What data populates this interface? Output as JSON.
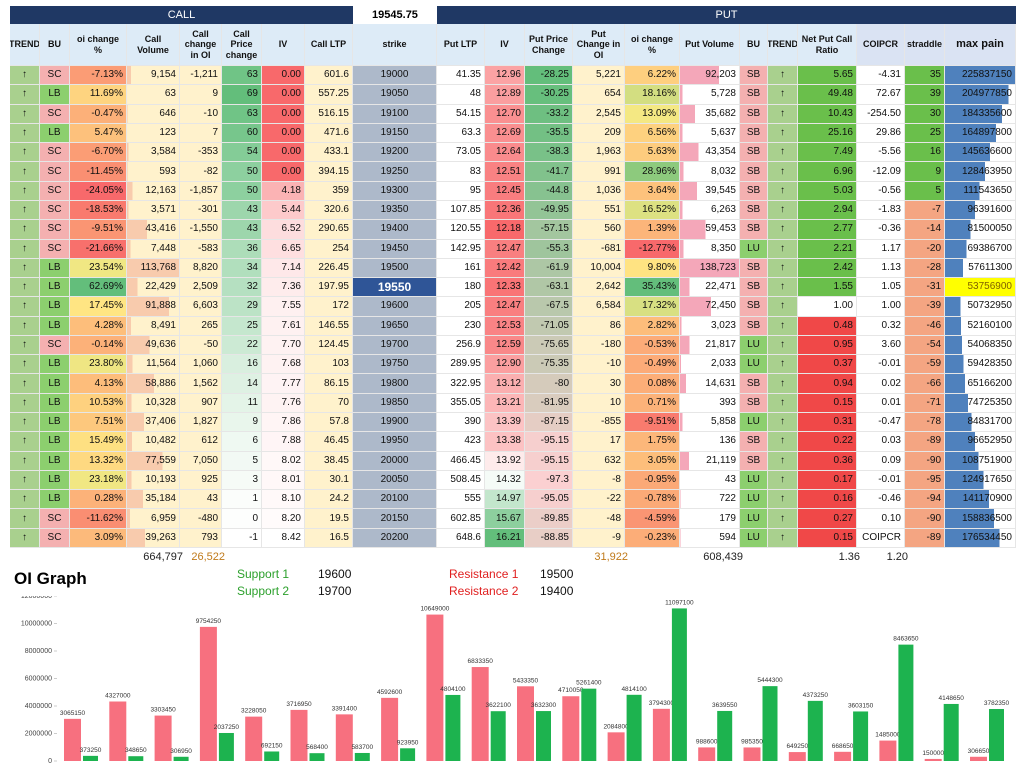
{
  "header": {
    "call": "CALL",
    "spot": "19545.75",
    "put": "PUT"
  },
  "table": {
    "columns": [
      "TREND",
      "BU",
      "oi change %",
      "Call Volume",
      "Call change in OI",
      "Call Price change",
      "IV",
      "Call LTP",
      "strike",
      "Put LTP",
      "IV",
      "Put Price Change",
      "Put Change in OI",
      "oi change %",
      "Put Volume",
      "BU",
      "TREND",
      "Net Put Call Ratio",
      "COIPCR",
      "straddle",
      "max pain"
    ],
    "rows": [
      [
        "↑",
        "SC",
        "-7.13%",
        "9,154",
        "-1,211",
        "63",
        "0.00",
        "601.6",
        "19000",
        "41.35",
        "12.96",
        "-28.25",
        "5,221",
        "6.22%",
        "92,203",
        "SB",
        "↑",
        "5.65",
        "-4.31",
        "35",
        "225837150"
      ],
      [
        "↑",
        "LB",
        "11.69%",
        "63",
        "9",
        "69",
        "0.00",
        "557.25",
        "19050",
        "48",
        "12.89",
        "-30.25",
        "654",
        "18.16%",
        "5,728",
        "SB",
        "↑",
        "49.48",
        "72.67",
        "39",
        "204977850"
      ],
      [
        "↑",
        "SC",
        "-0.47%",
        "646",
        "-10",
        "63",
        "0.00",
        "516.15",
        "19100",
        "54.15",
        "12.70",
        "-33.2",
        "2,545",
        "13.09%",
        "35,682",
        "SB",
        "↑",
        "10.43",
        "-254.50",
        "30",
        "184335600"
      ],
      [
        "↑",
        "LB",
        "5.47%",
        "123",
        "7",
        "60",
        "0.00",
        "471.6",
        "19150",
        "63.3",
        "12.69",
        "-35.5",
        "209",
        "6.56%",
        "5,637",
        "SB",
        "↑",
        "25.16",
        "29.86",
        "25",
        "164897800"
      ],
      [
        "↑",
        "SC",
        "-6.70%",
        "3,584",
        "-353",
        "54",
        "0.00",
        "433.1",
        "19200",
        "73.05",
        "12.64",
        "-38.3",
        "1,963",
        "5.63%",
        "43,354",
        "SB",
        "↑",
        "7.49",
        "-5.56",
        "16",
        "145636600"
      ],
      [
        "↑",
        "SC",
        "-11.45%",
        "593",
        "-82",
        "50",
        "0.00",
        "394.15",
        "19250",
        "83",
        "12.51",
        "-41.7",
        "991",
        "28.96%",
        "8,032",
        "SB",
        "↑",
        "6.96",
        "-12.09",
        "9",
        "128463950"
      ],
      [
        "↑",
        "SC",
        "-24.05%",
        "12,163",
        "-1,857",
        "50",
        "4.18",
        "359",
        "19300",
        "95",
        "12.45",
        "-44.8",
        "1,036",
        "3.64%",
        "39,545",
        "SB",
        "↑",
        "5.03",
        "-0.56",
        "5",
        "111543650"
      ],
      [
        "↑",
        "SC",
        "-18.53%",
        "3,571",
        "-301",
        "43",
        "5.44",
        "320.6",
        "19350",
        "107.85",
        "12.36",
        "-49.95",
        "551",
        "16.52%",
        "6,263",
        "SB",
        "↑",
        "2.94",
        "-1.83",
        "-7",
        "96391600"
      ],
      [
        "↑",
        "SC",
        "-9.51%",
        "43,416",
        "-1,550",
        "43",
        "6.52",
        "290.65",
        "19400",
        "120.55",
        "12.18",
        "-57.15",
        "560",
        "1.39%",
        "59,453",
        "SB",
        "↑",
        "2.77",
        "-0.36",
        "-14",
        "81500050"
      ],
      [
        "↑",
        "SC",
        "-21.66%",
        "7,448",
        "-583",
        "36",
        "6.65",
        "254",
        "19450",
        "142.95",
        "12.47",
        "-55.3",
        "-681",
        "-12.77%",
        "8,350",
        "LU",
        "↑",
        "2.21",
        "1.17",
        "-20",
        "69386700"
      ],
      [
        "↑",
        "LB",
        "23.54%",
        "113,768",
        "8,820",
        "34",
        "7.14",
        "226.45",
        "19500",
        "161",
        "12.42",
        "-61.9",
        "10,004",
        "9.80%",
        "138,723",
        "SB",
        "↑",
        "2.42",
        "1.13",
        "-28",
        "57611300"
      ],
      [
        "↑",
        "LB",
        "62.69%",
        "22,429",
        "2,509",
        "32",
        "7.36",
        "197.95",
        "19550",
        "180",
        "12.33",
        "-63.1",
        "2,642",
        "35.43%",
        "22,471",
        "SB",
        "↑",
        "1.55",
        "1.05",
        "-31",
        "53756900"
      ],
      [
        "↑",
        "LB",
        "17.45%",
        "91,888",
        "6,603",
        "29",
        "7.55",
        "172",
        "19600",
        "205",
        "12.47",
        "-67.5",
        "6,584",
        "17.32%",
        "72,450",
        "SB",
        "↑",
        "1.00",
        "1.00",
        "-39",
        "50732950"
      ],
      [
        "↑",
        "LB",
        "4.28%",
        "8,491",
        "265",
        "25",
        "7.61",
        "146.55",
        "19650",
        "230",
        "12.53",
        "-71.05",
        "86",
        "2.82%",
        "3,023",
        "SB",
        "↑",
        "0.48",
        "0.32",
        "-46",
        "52160100"
      ],
      [
        "↑",
        "SC",
        "-0.14%",
        "49,636",
        "-50",
        "22",
        "7.70",
        "124.45",
        "19700",
        "256.9",
        "12.59",
        "-75.65",
        "-180",
        "-0.53%",
        "21,817",
        "LU",
        "↑",
        "0.95",
        "3.60",
        "-54",
        "54068350"
      ],
      [
        "↑",
        "LB",
        "23.80%",
        "11,564",
        "1,060",
        "16",
        "7.68",
        "103",
        "19750",
        "289.95",
        "12.90",
        "-75.35",
        "-10",
        "-0.49%",
        "2,033",
        "LU",
        "↑",
        "0.37",
        "-0.01",
        "-59",
        "59428350"
      ],
      [
        "↑",
        "LB",
        "4.13%",
        "58,886",
        "1,562",
        "14",
        "7.77",
        "86.15",
        "19800",
        "322.95",
        "13.12",
        "-80",
        "30",
        "0.08%",
        "14,631",
        "SB",
        "↑",
        "0.94",
        "0.02",
        "-66",
        "65166200"
      ],
      [
        "↑",
        "LB",
        "10.53%",
        "10,328",
        "907",
        "11",
        "7.76",
        "70",
        "19850",
        "355.05",
        "13.21",
        "-81.95",
        "10",
        "0.71%",
        "393",
        "SB",
        "↑",
        "0.15",
        "0.01",
        "-71",
        "74725350"
      ],
      [
        "↑",
        "LB",
        "7.51%",
        "37,406",
        "1,827",
        "9",
        "7.86",
        "57.8",
        "19900",
        "390",
        "13.39",
        "-87.15",
        "-855",
        "-9.51%",
        "5,858",
        "LU",
        "↑",
        "0.31",
        "-0.47",
        "-78",
        "84831700"
      ],
      [
        "↑",
        "LB",
        "15.49%",
        "10,482",
        "612",
        "6",
        "7.88",
        "46.45",
        "19950",
        "423",
        "13.38",
        "-95.15",
        "17",
        "1.75%",
        "136",
        "SB",
        "↑",
        "0.22",
        "0.03",
        "-89",
        "96652950"
      ],
      [
        "↑",
        "LB",
        "13.32%",
        "77,559",
        "7,050",
        "5",
        "8.02",
        "38.45",
        "20000",
        "466.45",
        "13.92",
        "-95.15",
        "632",
        "3.05%",
        "21,119",
        "SB",
        "↑",
        "0.36",
        "0.09",
        "-90",
        "108751900"
      ],
      [
        "↑",
        "LB",
        "23.18%",
        "10,193",
        "925",
        "3",
        "8.01",
        "30.1",
        "20050",
        "508.45",
        "14.32",
        "-97.3",
        "-8",
        "-0.95%",
        "43",
        "LU",
        "↑",
        "0.17",
        "-0.01",
        "-95",
        "124917650"
      ],
      [
        "↑",
        "LB",
        "0.28%",
        "35,184",
        "43",
        "1",
        "8.10",
        "24.2",
        "20100",
        "555",
        "14.97",
        "-95.05",
        "-22",
        "-0.78%",
        "722",
        "LU",
        "↑",
        "0.16",
        "-0.46",
        "-94",
        "141170900"
      ],
      [
        "↑",
        "SC",
        "-11.62%",
        "6,959",
        "-480",
        "0",
        "8.20",
        "19.5",
        "20150",
        "602.85",
        "15.67",
        "-89.85",
        "-48",
        "-4.59%",
        "179",
        "LU",
        "↑",
        "0.27",
        "0.10",
        "-90",
        "158836500"
      ],
      [
        "↑",
        "SC",
        "3.09%",
        "39,263",
        "793",
        "-1",
        "8.42",
        "16.5",
        "20200",
        "648.6",
        "16.21",
        "-88.85",
        "-9",
        "-0.23%",
        "594",
        "LU",
        "↑",
        "0.15",
        "COIPCR",
        "-89",
        "176534450"
      ]
    ],
    "totals": {
      "call_volume": "664,797",
      "call_change_oi": "26,522",
      "put_change_oi": "31,922",
      "put_volume": "608,439",
      "net_pcr": "1.36",
      "coipcr": "1.20"
    }
  },
  "levels": {
    "support": [
      {
        "label": "Support 1",
        "value": "19600"
      },
      {
        "label": "Support 2",
        "value": "19700"
      }
    ],
    "resistance": [
      {
        "label": "Resistance 1",
        "value": "19500"
      },
      {
        "label": "Resistance 2",
        "value": "19400"
      }
    ]
  },
  "chart_data": {
    "type": "bar",
    "title": "OI Graph",
    "series": [
      {
        "color": "#f7707f",
        "values": [
          3065150,
          4327000,
          3303450,
          9754250,
          3228050,
          3716950,
          3391400,
          4592600,
          10649000,
          6833350,
          5433350,
          4710050,
          2084800,
          3794300,
          988600,
          985350,
          649250,
          668650,
          1485000,
          150000,
          306650
        ]
      },
      {
        "color": "#1db34f",
        "values": [
          373250,
          348650,
          306950,
          2037250,
          692150,
          568400,
          583700,
          923950,
          4804100,
          3622100,
          3632300,
          5261400,
          4814100,
          11097100,
          3639550,
          5444300,
          4373250,
          3603150,
          8463650,
          4148650,
          3782350
        ]
      }
    ],
    "ylim": [
      0,
      12000000
    ],
    "yticks": [
      0,
      2000000,
      4000000,
      6000000,
      8000000,
      10000000,
      12000000
    ]
  }
}
